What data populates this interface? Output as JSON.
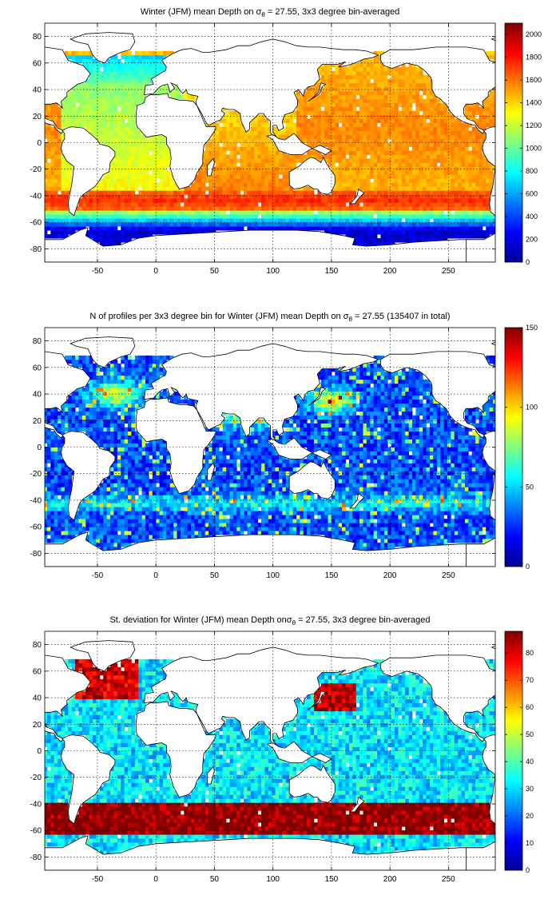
{
  "chart_data": [
    {
      "type": "heatmap",
      "title": "Winter (JFM) mean Depth on σθ = 27.55, 3x3 degree bin-averaged",
      "title_parts": {
        "pre": "Winter (JFM) mean Depth on σ",
        "sub": "θ",
        "post": " = 27.55, 3x3 degree bin-averaged"
      },
      "xlim": [
        -95,
        290
      ],
      "ylim": [
        -90,
        90
      ],
      "xticks": [
        -50,
        0,
        50,
        100,
        150,
        200,
        250
      ],
      "yticks": [
        80,
        60,
        40,
        20,
        0,
        -20,
        -40,
        -60,
        -80
      ],
      "colorbar": {
        "min": 0,
        "max": 2100,
        "ticks": [
          2000,
          1800,
          1600,
          1400,
          1200,
          1000,
          800,
          600,
          400,
          200,
          0
        ]
      },
      "grid": true
    },
    {
      "type": "heatmap",
      "title": "N of profiles per 3x3 degree bin for Winter (JFM) mean Depth on σθ = 27.55 (135407 in total)",
      "title_parts": {
        "pre": "N of profiles per 3x3 degree bin for Winter (JFM) mean Depth on σ",
        "sub": "θ",
        "post": " = 27.55 (135407 in total)"
      },
      "xlim": [
        -95,
        290
      ],
      "ylim": [
        -90,
        90
      ],
      "xticks": [
        -50,
        0,
        50,
        100,
        150,
        200,
        250
      ],
      "yticks": [
        80,
        60,
        40,
        20,
        0,
        -20,
        -40,
        -60,
        -80
      ],
      "colorbar": {
        "min": 0,
        "max": 150,
        "ticks": [
          150,
          100,
          50,
          0
        ]
      },
      "grid": true
    },
    {
      "type": "heatmap",
      "title": "St. deviation for Winter (JFM) mean Depth onσθ = 27.55, 3x3 degree bin-averaged",
      "title_parts": {
        "pre": "St. deviation for Winter (JFM) mean Depth onσ",
        "sub": "θ",
        "post": " = 27.55, 3x3 degree bin-averaged"
      },
      "xlim": [
        -95,
        290
      ],
      "ylim": [
        -90,
        90
      ],
      "xticks": [
        -50,
        0,
        50,
        100,
        150,
        200,
        250
      ],
      "yticks": [
        80,
        60,
        40,
        20,
        0,
        -20,
        -40,
        -60,
        -80
      ],
      "colorbar": {
        "min": 0,
        "max": 88,
        "ticks": [
          80,
          70,
          60,
          50,
          40,
          30,
          20,
          10,
          0
        ]
      },
      "grid": true
    }
  ]
}
